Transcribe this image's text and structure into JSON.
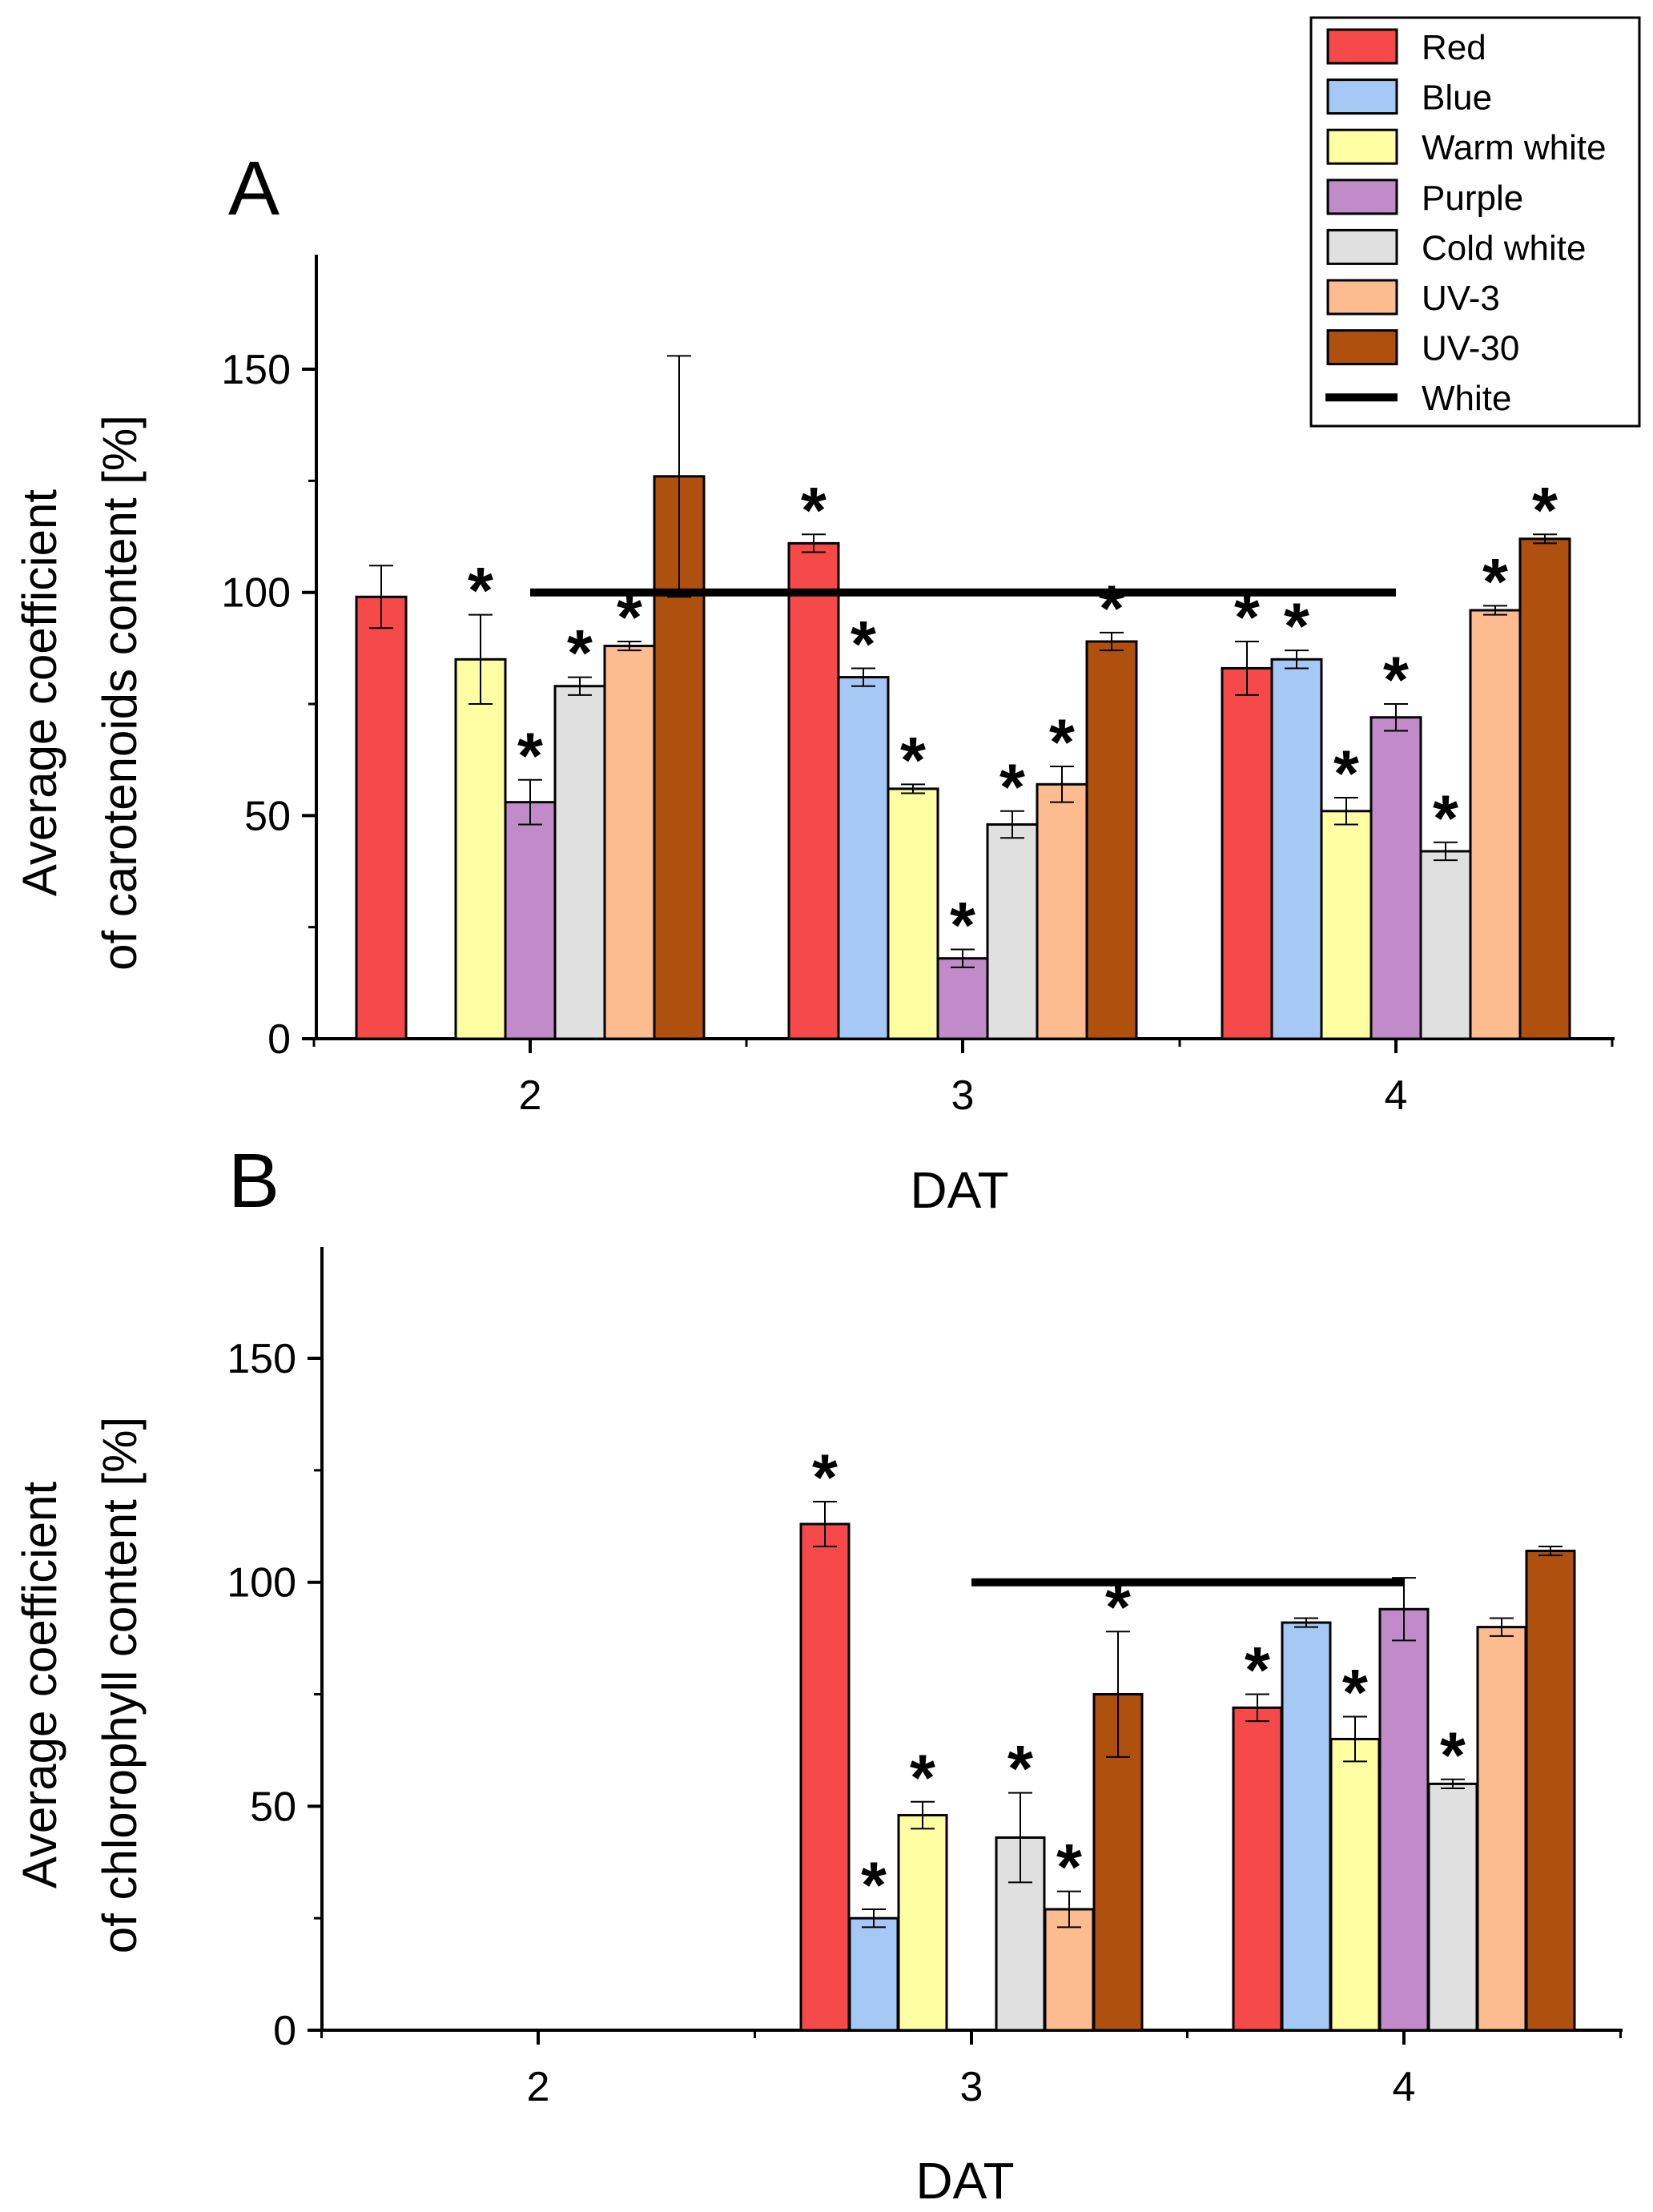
{
  "legend": {
    "items": [
      {
        "label": "Red",
        "color": "#f64a4a",
        "kind": "box"
      },
      {
        "label": "Blue",
        "color": "#a6c8f4",
        "kind": "box"
      },
      {
        "label": "Warm white",
        "color": "#feffa3",
        "kind": "box"
      },
      {
        "label": "Purple",
        "color": "#c08bc8",
        "kind": "box"
      },
      {
        "label": "Cold white",
        "color": "#e0e0e0",
        "kind": "box"
      },
      {
        "label": "UV-3",
        "color": "#fdbb90",
        "kind": "box"
      },
      {
        "label": "UV-30",
        "color": "#b0500e",
        "kind": "box"
      },
      {
        "label": "White",
        "color": "#000000",
        "kind": "line"
      }
    ]
  },
  "chart_data": [
    {
      "type": "bar",
      "panel": "A",
      "categories": [
        "2",
        "3",
        "4"
      ],
      "xlabel": "DAT",
      "ylabel_lines": [
        "Average coefficient",
        "of carotenoids content [%]"
      ],
      "ylim": [
        0,
        175
      ],
      "yticks": [
        0,
        50,
        100,
        150
      ],
      "reference_line": {
        "label": "White",
        "value": 100,
        "x_from": "2",
        "x_to": "4"
      },
      "series": [
        {
          "name": "Red",
          "values": [
            99,
            111,
            83
          ],
          "errors": [
            7,
            2,
            6
          ],
          "significant": [
            false,
            true,
            true
          ]
        },
        {
          "name": "Blue",
          "values": [
            null,
            81,
            85
          ],
          "errors": [
            null,
            2,
            2
          ],
          "significant": [
            false,
            true,
            true
          ]
        },
        {
          "name": "Warm white",
          "values": [
            85,
            56,
            51
          ],
          "errors": [
            10,
            1,
            3
          ],
          "significant": [
            true,
            true,
            true
          ]
        },
        {
          "name": "Purple",
          "values": [
            53,
            18,
            72
          ],
          "errors": [
            5,
            2,
            3
          ],
          "significant": [
            true,
            true,
            true
          ]
        },
        {
          "name": "Cold white",
          "values": [
            79,
            48,
            42
          ],
          "errors": [
            2,
            3,
            2
          ],
          "significant": [
            true,
            true,
            true
          ]
        },
        {
          "name": "UV-3",
          "values": [
            88,
            57,
            96
          ],
          "errors": [
            1,
            4,
            1
          ],
          "significant": [
            true,
            true,
            true
          ]
        },
        {
          "name": "UV-30",
          "values": [
            126,
            89,
            112
          ],
          "errors": [
            27,
            2,
            1
          ],
          "significant": [
            false,
            true,
            true
          ]
        }
      ]
    },
    {
      "type": "bar",
      "panel": "B",
      "categories": [
        "2",
        "3",
        "4"
      ],
      "xlabel": "DAT",
      "ylabel_lines": [
        "Average coefficient",
        "of chlorophyll content [%]"
      ],
      "ylim": [
        0,
        175
      ],
      "yticks": [
        0,
        50,
        100,
        150
      ],
      "reference_line": {
        "label": "White",
        "value": 100,
        "x_from": "3",
        "x_to": "4"
      },
      "series": [
        {
          "name": "Red",
          "values": [
            null,
            113,
            72
          ],
          "errors": [
            null,
            5,
            3
          ],
          "significant": [
            false,
            true,
            true
          ]
        },
        {
          "name": "Blue",
          "values": [
            null,
            25,
            91
          ],
          "errors": [
            null,
            2,
            1
          ],
          "significant": [
            false,
            true,
            false
          ]
        },
        {
          "name": "Warm white",
          "values": [
            null,
            48,
            65
          ],
          "errors": [
            null,
            3,
            5
          ],
          "significant": [
            false,
            true,
            true
          ]
        },
        {
          "name": "Purple",
          "values": [
            null,
            null,
            94
          ],
          "errors": [
            null,
            null,
            7
          ],
          "significant": [
            false,
            false,
            false
          ]
        },
        {
          "name": "Cold white",
          "values": [
            null,
            43,
            55
          ],
          "errors": [
            null,
            10,
            1
          ],
          "significant": [
            false,
            true,
            true
          ]
        },
        {
          "name": "UV-3",
          "values": [
            null,
            27,
            90
          ],
          "errors": [
            null,
            4,
            2
          ],
          "significant": [
            false,
            true,
            false
          ]
        },
        {
          "name": "UV-30",
          "values": [
            null,
            75,
            107
          ],
          "errors": [
            null,
            14,
            1
          ],
          "significant": [
            false,
            true,
            false
          ]
        }
      ]
    }
  ],
  "marker": "*"
}
